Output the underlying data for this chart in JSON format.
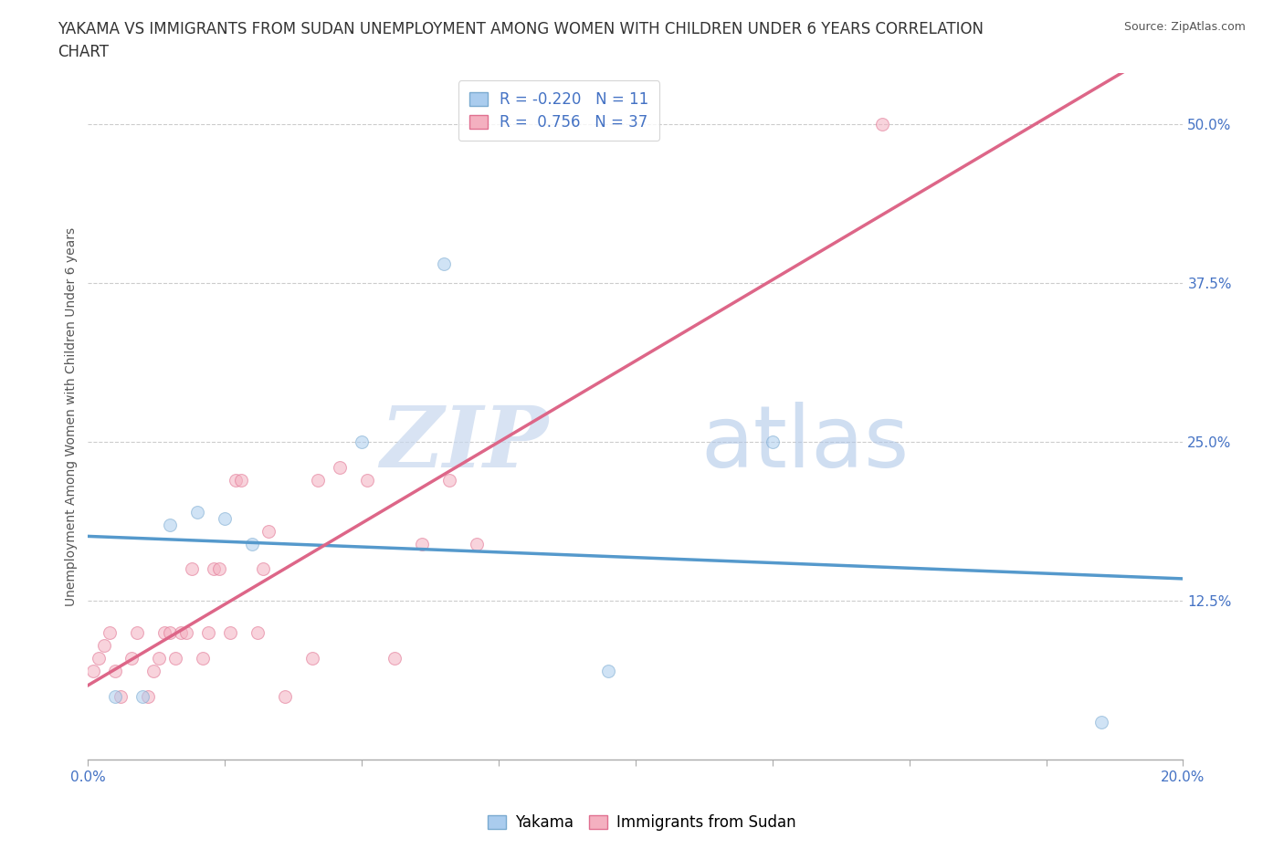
{
  "title_line1": "YAKAMA VS IMMIGRANTS FROM SUDAN UNEMPLOYMENT AMONG WOMEN WITH CHILDREN UNDER 6 YEARS CORRELATION",
  "title_line2": "CHART",
  "source": "Source: ZipAtlas.com",
  "ylabel": "Unemployment Among Women with Children Under 6 years",
  "watermark_zip": "ZIP",
  "watermark_atlas": "atlas",
  "xlim": [
    0.0,
    0.2
  ],
  "ylim": [
    0.0,
    0.54
  ],
  "xticks": [
    0.0,
    0.025,
    0.05,
    0.075,
    0.1,
    0.125,
    0.15,
    0.175,
    0.2
  ],
  "yticks_right": [
    0.125,
    0.25,
    0.375,
    0.5
  ],
  "yticklabels_right": [
    "12.5%",
    "25.0%",
    "37.5%",
    "50.0%"
  ],
  "grid_color": "#cccccc",
  "background_color": "#ffffff",
  "yakama_color": "#aaccee",
  "yakama_edge": "#7aaad0",
  "sudan_color": "#f4b0c0",
  "sudan_edge": "#e07090",
  "trend_yakama_color": "#5599cc",
  "trend_sudan_color": "#dd6688",
  "R_yakama": -0.22,
  "N_yakama": 11,
  "R_sudan": 0.756,
  "N_sudan": 37,
  "yakama_x": [
    0.005,
    0.01,
    0.015,
    0.02,
    0.025,
    0.03,
    0.05,
    0.065,
    0.095,
    0.125,
    0.185
  ],
  "yakama_y": [
    0.05,
    0.05,
    0.185,
    0.195,
    0.19,
    0.17,
    0.25,
    0.39,
    0.07,
    0.25,
    0.03
  ],
  "sudan_x": [
    0.001,
    0.002,
    0.003,
    0.004,
    0.005,
    0.006,
    0.008,
    0.009,
    0.011,
    0.012,
    0.013,
    0.014,
    0.015,
    0.016,
    0.017,
    0.018,
    0.019,
    0.021,
    0.022,
    0.023,
    0.024,
    0.026,
    0.027,
    0.028,
    0.031,
    0.032,
    0.033,
    0.036,
    0.041,
    0.042,
    0.046,
    0.051,
    0.056,
    0.061,
    0.066,
    0.071,
    0.145
  ],
  "sudan_y": [
    0.07,
    0.08,
    0.09,
    0.1,
    0.07,
    0.05,
    0.08,
    0.1,
    0.05,
    0.07,
    0.08,
    0.1,
    0.1,
    0.08,
    0.1,
    0.1,
    0.15,
    0.08,
    0.1,
    0.15,
    0.15,
    0.1,
    0.22,
    0.22,
    0.1,
    0.15,
    0.18,
    0.05,
    0.08,
    0.22,
    0.23,
    0.22,
    0.08,
    0.17,
    0.22,
    0.17,
    0.5
  ],
  "legend_yakama": "Yakama",
  "legend_sudan": "Immigrants from Sudan",
  "title_fontsize": 12,
  "label_fontsize": 10,
  "tick_fontsize": 11,
  "legend_fontsize": 12,
  "marker_size": 100,
  "marker_alpha": 0.55,
  "line_width": 2.5
}
